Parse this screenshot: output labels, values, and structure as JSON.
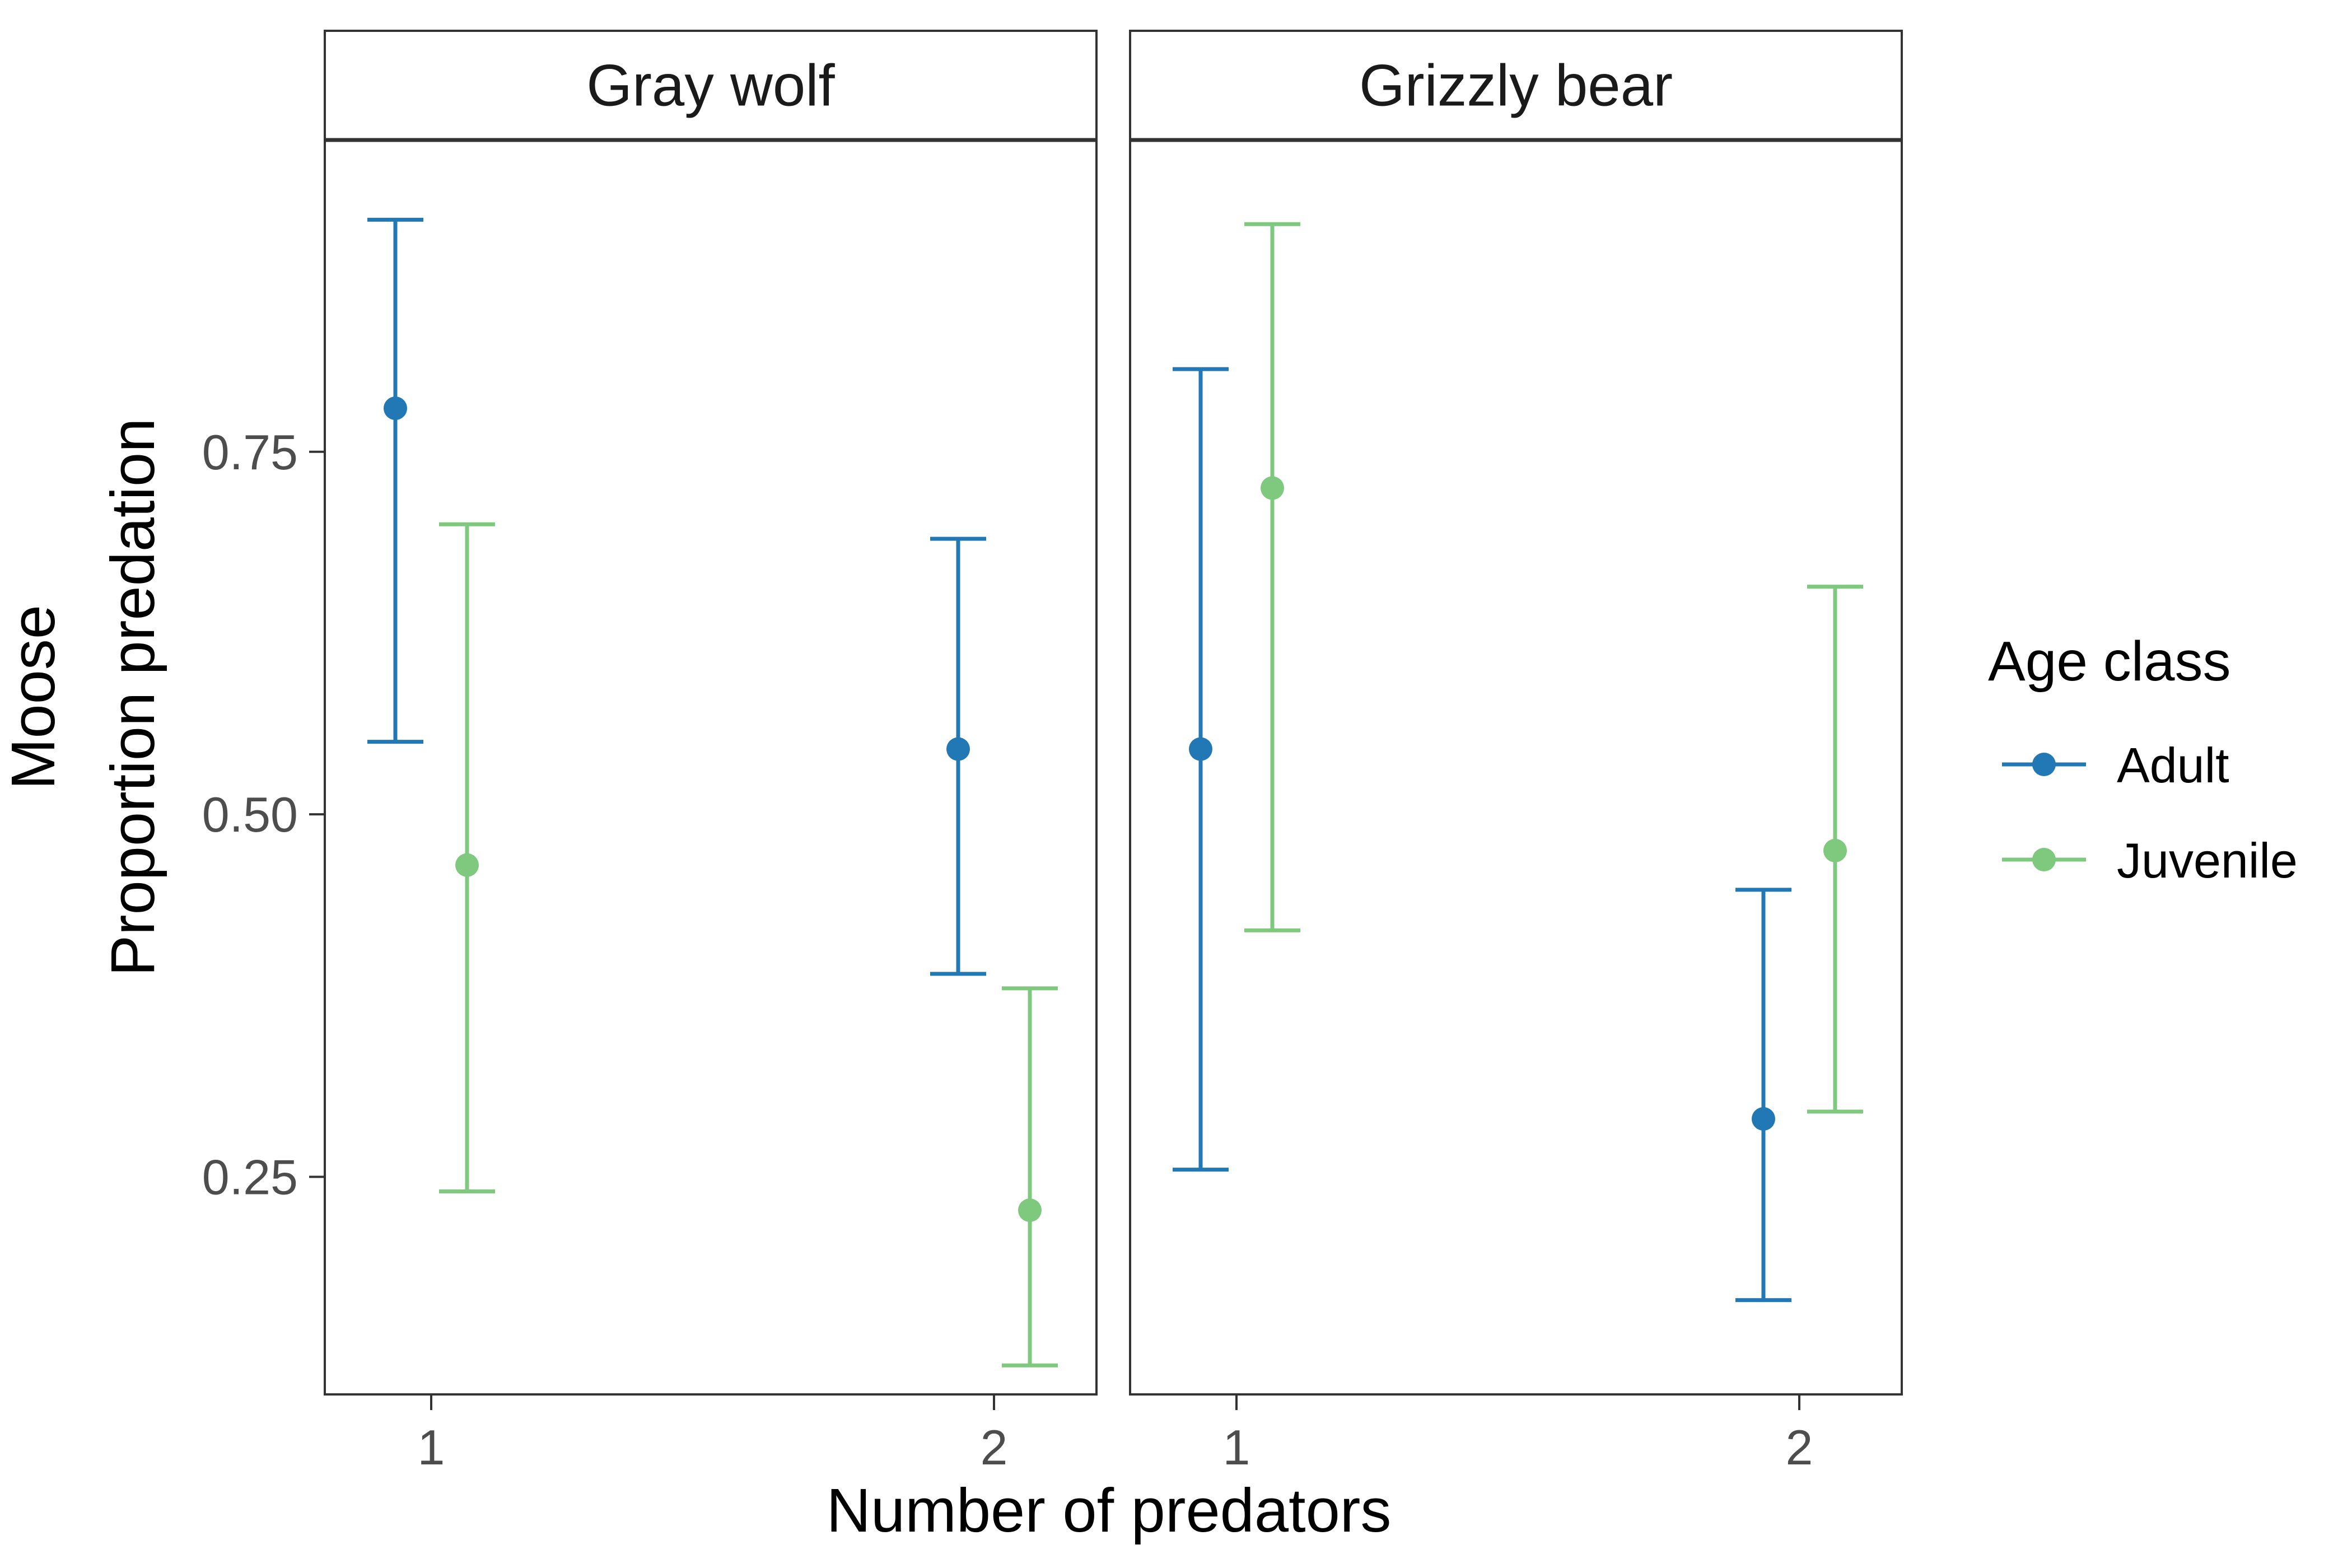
{
  "chart_data": {
    "type": "errorbar",
    "xlabel": "Number of predators",
    "ylabel_lines": [
      "Moose",
      "Proportion predation"
    ],
    "yticks": [
      0.25,
      0.5,
      0.75
    ],
    "ytick_labels": [
      "0.25",
      "0.50",
      "0.75"
    ],
    "ylim": [
      0.1,
      0.965
    ],
    "xticks": [
      1,
      2
    ],
    "xtick_labels": [
      "1",
      "2"
    ],
    "grid": false,
    "legend": {
      "title": "Age class",
      "position": "right",
      "entries": [
        {
          "name": "Adult",
          "color": "#2178b4"
        },
        {
          "name": "Juvenile",
          "color": "#7fc97f"
        }
      ]
    },
    "panels": [
      {
        "title": "Gray wolf",
        "series": [
          {
            "name": "Adult",
            "color": "#2178b4",
            "points": [
              {
                "x": 1,
                "y": 0.78,
                "lower": 0.55,
                "upper": 0.91
              },
              {
                "x": 2,
                "y": 0.545,
                "lower": 0.39,
                "upper": 0.69
              }
            ]
          },
          {
            "name": "Juvenile",
            "color": "#7fc97f",
            "points": [
              {
                "x": 1,
                "y": 0.465,
                "lower": 0.24,
                "upper": 0.7
              },
              {
                "x": 2,
                "y": 0.227,
                "lower": 0.12,
                "upper": 0.38
              }
            ]
          }
        ]
      },
      {
        "title": "Grizzly bear",
        "series": [
          {
            "name": "Adult",
            "color": "#2178b4",
            "points": [
              {
                "x": 1,
                "y": 0.545,
                "lower": 0.255,
                "upper": 0.807
              },
              {
                "x": 2,
                "y": 0.29,
                "lower": 0.165,
                "upper": 0.448
              }
            ]
          },
          {
            "name": "Juvenile",
            "color": "#7fc97f",
            "points": [
              {
                "x": 1,
                "y": 0.725,
                "lower": 0.42,
                "upper": 0.907
              },
              {
                "x": 2,
                "y": 0.475,
                "lower": 0.295,
                "upper": 0.657
              }
            ]
          }
        ]
      }
    ]
  }
}
